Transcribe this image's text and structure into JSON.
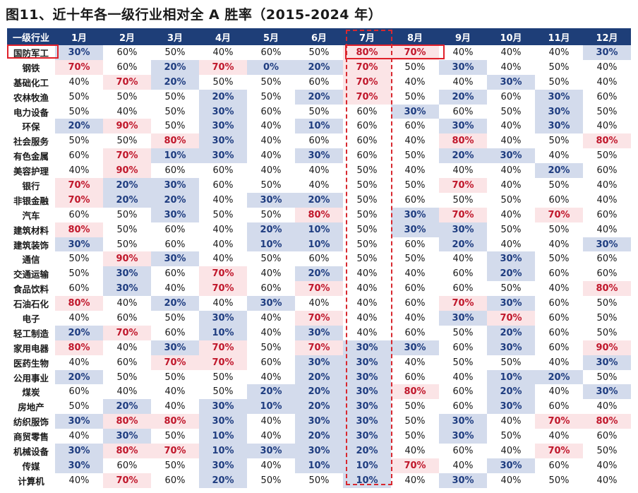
{
  "title": "图11、近十年各一级行业相对全 A 胜率（2015-2024 年）",
  "chart_data": {
    "type": "table",
    "title": "图11、近十年各一级行业相对全 A 胜率（2015-2024 年）",
    "corner_label": "一级行业",
    "columns": [
      "1月",
      "2月",
      "3月",
      "4月",
      "5月",
      "6月",
      "7月",
      "8月",
      "9月",
      "10月",
      "11月",
      "12月"
    ],
    "high_threshold": "≥70%",
    "low_threshold": "≤30%",
    "colors": {
      "header_bg": "#1e3e78",
      "high_bg": "#fbe4e6",
      "high_text": "#c0172b",
      "low_bg": "#d3dbec",
      "low_text": "#1f3d80",
      "marker": "#e0202a"
    },
    "highlights": {
      "industry": "国防军工",
      "row_months": [
        "7月",
        "8月"
      ],
      "column": "7月"
    },
    "rows": [
      {
        "industry": "国防军工",
        "values": [
          30,
          60,
          50,
          40,
          60,
          50,
          80,
          70,
          40,
          40,
          40,
          30
        ]
      },
      {
        "industry": "钢铁",
        "values": [
          70,
          60,
          20,
          70,
          0,
          20,
          70,
          50,
          30,
          40,
          50,
          40
        ]
      },
      {
        "industry": "基础化工",
        "values": [
          40,
          70,
          20,
          50,
          50,
          60,
          70,
          40,
          40,
          30,
          50,
          40
        ]
      },
      {
        "industry": "农林牧渔",
        "values": [
          50,
          50,
          50,
          20,
          50,
          20,
          70,
          50,
          20,
          60,
          30,
          60
        ]
      },
      {
        "industry": "电力设备",
        "values": [
          50,
          40,
          50,
          30,
          60,
          50,
          60,
          30,
          60,
          50,
          30,
          50
        ]
      },
      {
        "industry": "环保",
        "values": [
          20,
          90,
          50,
          30,
          40,
          10,
          60,
          60,
          30,
          40,
          30,
          40
        ]
      },
      {
        "industry": "社会服务",
        "values": [
          50,
          50,
          80,
          30,
          40,
          60,
          60,
          40,
          80,
          40,
          50,
          80
        ]
      },
      {
        "industry": "有色金属",
        "values": [
          60,
          70,
          10,
          30,
          40,
          30,
          60,
          50,
          20,
          30,
          40,
          50
        ]
      },
      {
        "industry": "美容护理",
        "values": [
          40,
          90,
          60,
          60,
          40,
          40,
          50,
          40,
          40,
          40,
          20,
          60
        ]
      },
      {
        "industry": "银行",
        "values": [
          70,
          20,
          30,
          60,
          50,
          40,
          50,
          50,
          70,
          40,
          50,
          40
        ]
      },
      {
        "industry": "非银金融",
        "values": [
          70,
          20,
          20,
          40,
          30,
          20,
          50,
          60,
          50,
          50,
          60,
          40
        ]
      },
      {
        "industry": "汽车",
        "values": [
          60,
          50,
          30,
          50,
          50,
          80,
          50,
          30,
          70,
          40,
          70,
          60
        ]
      },
      {
        "industry": "建筑材料",
        "values": [
          80,
          50,
          60,
          40,
          20,
          10,
          50,
          30,
          30,
          50,
          50,
          40
        ]
      },
      {
        "industry": "建筑装饰",
        "values": [
          30,
          50,
          60,
          40,
          10,
          10,
          50,
          60,
          20,
          40,
          40,
          30
        ]
      },
      {
        "industry": "通信",
        "values": [
          50,
          90,
          30,
          40,
          50,
          60,
          50,
          50,
          40,
          30,
          50,
          60
        ]
      },
      {
        "industry": "交通运输",
        "values": [
          50,
          30,
          60,
          70,
          40,
          20,
          40,
          40,
          60,
          20,
          60,
          60
        ]
      },
      {
        "industry": "食品饮料",
        "values": [
          60,
          30,
          40,
          70,
          60,
          70,
          40,
          60,
          60,
          50,
          40,
          80
        ]
      },
      {
        "industry": "石油石化",
        "values": [
          80,
          40,
          20,
          40,
          30,
          40,
          40,
          60,
          70,
          30,
          60,
          50
        ]
      },
      {
        "industry": "电子",
        "values": [
          40,
          60,
          50,
          30,
          40,
          70,
          40,
          40,
          30,
          70,
          60,
          50
        ]
      },
      {
        "industry": "轻工制造",
        "values": [
          20,
          70,
          60,
          10,
          40,
          30,
          40,
          60,
          50,
          20,
          60,
          50
        ]
      },
      {
        "industry": "家用电器",
        "values": [
          80,
          40,
          30,
          70,
          50,
          70,
          30,
          30,
          60,
          30,
          60,
          90
        ]
      },
      {
        "industry": "医药生物",
        "values": [
          40,
          60,
          70,
          70,
          60,
          30,
          30,
          40,
          50,
          50,
          40,
          30
        ]
      },
      {
        "industry": "公用事业",
        "values": [
          20,
          50,
          50,
          50,
          40,
          20,
          30,
          60,
          40,
          10,
          20,
          50
        ]
      },
      {
        "industry": "煤炭",
        "values": [
          60,
          40,
          40,
          50,
          20,
          20,
          30,
          80,
          60,
          20,
          40,
          30
        ]
      },
      {
        "industry": "房地产",
        "values": [
          50,
          20,
          40,
          30,
          10,
          20,
          30,
          50,
          60,
          30,
          60,
          40
        ]
      },
      {
        "industry": "纺织服饰",
        "values": [
          30,
          80,
          80,
          30,
          40,
          30,
          30,
          50,
          30,
          40,
          70,
          80
        ]
      },
      {
        "industry": "商贸零售",
        "values": [
          40,
          30,
          50,
          10,
          40,
          20,
          30,
          50,
          30,
          50,
          40,
          60
        ]
      },
      {
        "industry": "机械设备",
        "values": [
          30,
          80,
          70,
          10,
          30,
          30,
          20,
          40,
          60,
          40,
          70,
          50
        ]
      },
      {
        "industry": "传媒",
        "values": [
          30,
          60,
          50,
          30,
          40,
          10,
          10,
          70,
          40,
          30,
          60,
          40
        ]
      },
      {
        "industry": "计算机",
        "values": [
          40,
          70,
          60,
          20,
          50,
          50,
          10,
          40,
          30,
          40,
          50,
          40
        ]
      }
    ]
  }
}
